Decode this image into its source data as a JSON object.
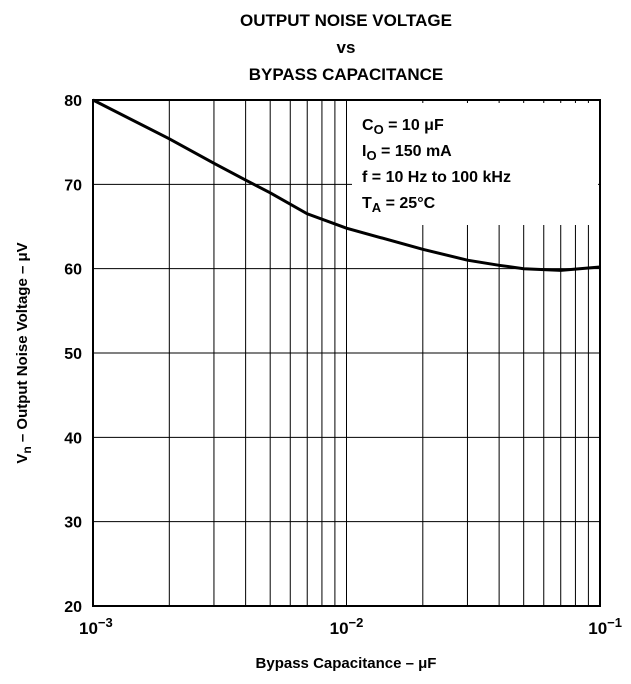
{
  "chart_data": {
    "type": "line",
    "title": [
      "OUTPUT NOISE VOLTAGE",
      "vs",
      "BYPASS CAPACITANCE"
    ],
    "xlabel": [
      "Bypass Capacitance – μF"
    ],
    "ylabel": [
      "V",
      "n",
      " – Output Noise Voltage – μV"
    ],
    "annotations": [
      [
        "C",
        "O",
        " = 10 μF"
      ],
      [
        "I",
        "O",
        " = 150 mA"
      ],
      [
        "f = 10 Hz to 100 kHz"
      ],
      [
        "T",
        "A",
        " = 25°C"
      ]
    ],
    "log_x": true,
    "grid": true,
    "color": "#000000",
    "xlim": [
      0.001,
      0.1
    ],
    "ylim": [
      20,
      80
    ],
    "xticks": [
      {
        "value": 0.001,
        "label": [
          "10",
          "−3"
        ]
      },
      {
        "value": 0.01,
        "label": [
          "10",
          "−2"
        ]
      },
      {
        "value": 0.1,
        "label": [
          "10",
          "−1"
        ]
      }
    ],
    "minor_xticks": [
      0.002,
      0.003,
      0.004,
      0.005,
      0.006,
      0.007,
      0.008,
      0.009,
      0.02,
      0.03,
      0.04,
      0.05,
      0.06,
      0.07,
      0.08,
      0.09
    ],
    "yticks": [
      20,
      30,
      40,
      50,
      60,
      70,
      80
    ],
    "x": [
      0.001,
      0.002,
      0.003,
      0.004,
      0.005,
      0.007,
      0.01,
      0.02,
      0.03,
      0.04,
      0.05,
      0.07,
      0.1
    ],
    "values": [
      80,
      75.4,
      72.5,
      70.5,
      69,
      66.5,
      64.8,
      62.3,
      61,
      60.4,
      60,
      59.8,
      60.2
    ]
  }
}
